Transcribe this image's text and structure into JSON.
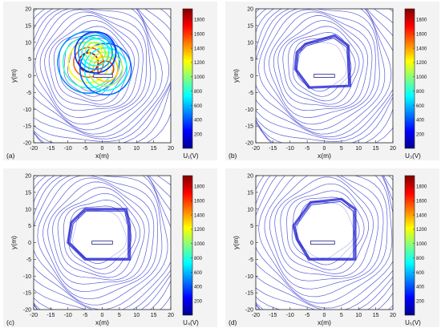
{
  "colors": {
    "panel_bg": "#f3f3f3",
    "contour": "#3d3fd2",
    "fence": "#1b1bd0",
    "colormap": [
      "#00008f",
      "#0000ff",
      "#0080ff",
      "#00ffff",
      "#80ff80",
      "#ffff00",
      "#ff8000",
      "#ff0000",
      "#800000"
    ]
  },
  "chart_data": [
    {
      "type": "contour",
      "panel_label": "(a)",
      "xlabel": "x(m)",
      "ylabel": "y(m)",
      "colorbar_label": "U₁(V)",
      "xlim": [
        -20,
        20
      ],
      "ylim": [
        -20,
        20
      ],
      "xticks": [
        "-20",
        "-15",
        "-10",
        "-5",
        "0",
        "5",
        "10",
        "15",
        "20"
      ],
      "yticks": [
        "20",
        "15",
        "10",
        "5",
        "0",
        "-5",
        "-10",
        "-15",
        "-20"
      ],
      "colorbar_ticks": [
        "1800",
        "1600",
        "1400",
        "1200",
        "1000",
        "800",
        "600",
        "400",
        "200"
      ],
      "clim": [
        0,
        1950
      ],
      "fence": [],
      "conductor": {
        "x": [
          -2.5,
          3
        ],
        "y": 0
      },
      "field_center": [
        -3,
        3
      ],
      "field_radius": [
        13,
        13
      ],
      "peak_values": [
        1850,
        1600,
        1200
      ]
    },
    {
      "type": "contour",
      "panel_label": "(b)",
      "xlabel": "x(m)",
      "ylabel": "y(m)",
      "colorbar_label": "U₃(V)",
      "xlim": [
        -20,
        20
      ],
      "ylim": [
        -20,
        20
      ],
      "xticks": [
        "-20",
        "-15",
        "-10",
        "-5",
        "0",
        "5",
        "10",
        "15",
        "20"
      ],
      "yticks": [
        "20",
        "15",
        "10",
        "5",
        "0",
        "-5",
        "-10",
        "-15",
        "-20"
      ],
      "colorbar_ticks": [
        "1800",
        "1600",
        "1400",
        "1200",
        "1000",
        "800",
        "600",
        "400",
        "200"
      ],
      "clim": [
        0,
        1950
      ],
      "fence": [
        [
          -8,
          7
        ],
        [
          -5.5,
          9.5
        ],
        [
          3,
          12
        ],
        [
          7,
          9
        ],
        [
          7.5,
          -3
        ],
        [
          -4.5,
          -3.5
        ],
        [
          -8.5,
          2
        ]
      ],
      "conductor": {
        "x": [
          -3,
          3
        ],
        "y": 0
      },
      "field_center": [
        -1,
        3
      ],
      "field_radius": [
        13,
        13
      ],
      "peak_values": []
    },
    {
      "type": "contour",
      "panel_label": "(c)",
      "xlabel": "x(m)",
      "ylabel": "y(m)",
      "colorbar_label": "U₄(V)",
      "xlim": [
        -20,
        20
      ],
      "ylim": [
        -20,
        20
      ],
      "xticks": [
        "-20",
        "-15",
        "-10",
        "-5",
        "0",
        "5",
        "10",
        "15",
        "20"
      ],
      "yticks": [
        "20",
        "15",
        "10",
        "5",
        "0",
        "-5",
        "-10",
        "-15",
        "-20"
      ],
      "colorbar_ticks": [
        "1800",
        "1600",
        "1400",
        "1200",
        "1000",
        "800",
        "600",
        "400",
        "200"
      ],
      "clim": [
        0,
        1950
      ],
      "fence": [
        [
          -9,
          6
        ],
        [
          -5,
          10
        ],
        [
          7,
          10
        ],
        [
          8,
          5
        ],
        [
          8,
          -5
        ],
        [
          -5,
          -5
        ],
        [
          -10,
          0
        ]
      ],
      "conductor": {
        "x": [
          -3,
          3
        ],
        "y": 0
      },
      "field_center": [
        -1,
        2
      ],
      "field_radius": [
        14,
        14
      ],
      "peak_values": []
    },
    {
      "type": "contour",
      "panel_label": "(d)",
      "xlabel": "x(m)",
      "ylabel": "y(m)",
      "colorbar_label": "U₅(V)",
      "xlim": [
        -20,
        20
      ],
      "ylim": [
        -20,
        20
      ],
      "xticks": [
        "-20",
        "-15",
        "-10",
        "-5",
        "0",
        "5",
        "10",
        "15",
        "20"
      ],
      "yticks": [
        "20",
        "15",
        "10",
        "5",
        "0",
        "-5",
        "-10",
        "-15",
        "-20"
      ],
      "colorbar_ticks": [
        "1800",
        "1600",
        "1400",
        "1200",
        "1000",
        "800",
        "600",
        "400",
        "200"
      ],
      "clim": [
        0,
        1950
      ],
      "fence": [
        [
          -9,
          5
        ],
        [
          -4,
          12
        ],
        [
          5,
          13
        ],
        [
          9,
          10
        ],
        [
          9,
          -5
        ],
        [
          -4.5,
          -5
        ],
        [
          -8,
          1
        ]
      ],
      "conductor": {
        "x": [
          -4,
          3
        ],
        "y": 0
      },
      "field_center": [
        0,
        4
      ],
      "field_radius": [
        15,
        15
      ],
      "peak_values": []
    }
  ]
}
